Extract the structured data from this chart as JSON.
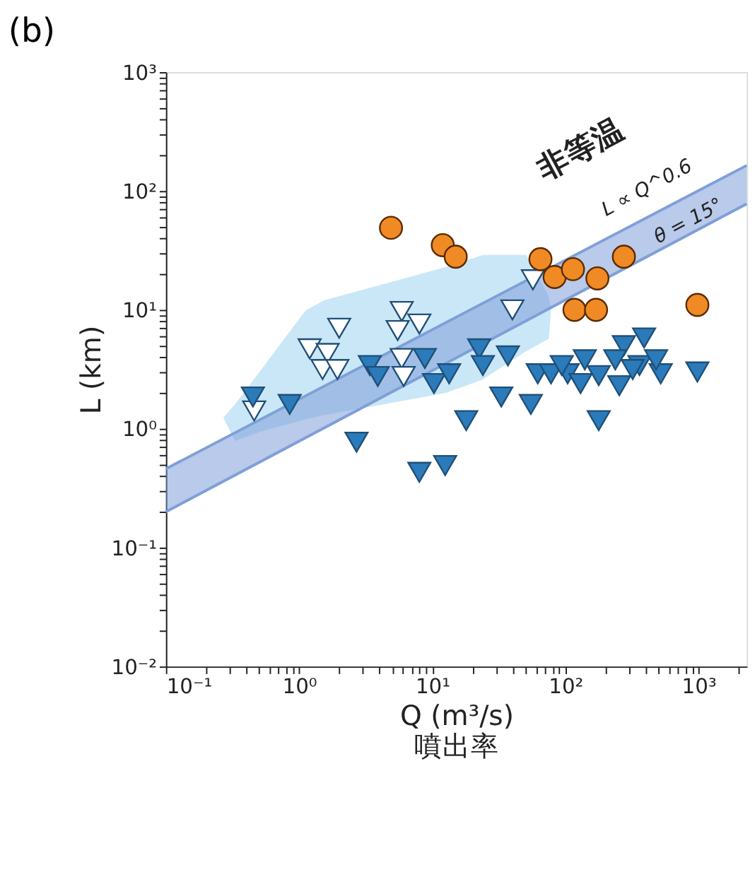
{
  "chart_data": {
    "type": "scatter",
    "title": "(b)",
    "xlabel": "Q (m³/s)\n噴出率",
    "ylabel": "L (km)",
    "log": "xy",
    "grid": false,
    "xlim": [
      0.1,
      2300
    ],
    "ylim": [
      0.01,
      1000
    ],
    "xticks": [
      {
        "value": 0.1,
        "label": "10⁻¹"
      },
      {
        "value": 0.2,
        "label": null
      },
      {
        "value": 0.3,
        "label": null
      },
      {
        "value": 0.4,
        "label": null
      },
      {
        "value": 0.5,
        "label": null
      },
      {
        "value": 0.6,
        "label": null
      },
      {
        "value": 0.7,
        "label": null
      },
      {
        "value": 0.8,
        "label": null
      },
      {
        "value": 0.9,
        "label": null
      },
      {
        "value": 1,
        "label": "10⁰"
      },
      {
        "value": 2,
        "label": null
      },
      {
        "value": 3,
        "label": null
      },
      {
        "value": 4,
        "label": null
      },
      {
        "value": 5,
        "label": null
      },
      {
        "value": 6,
        "label": null
      },
      {
        "value": 7,
        "label": null
      },
      {
        "value": 8,
        "label": null
      },
      {
        "value": 9,
        "label": null
      },
      {
        "value": 10,
        "label": "10¹"
      },
      {
        "value": 20,
        "label": null
      },
      {
        "value": 30,
        "label": null
      },
      {
        "value": 40,
        "label": null
      },
      {
        "value": 50,
        "label": null
      },
      {
        "value": 60,
        "label": null
      },
      {
        "value": 70,
        "label": null
      },
      {
        "value": 80,
        "label": null
      },
      {
        "value": 90,
        "label": null
      },
      {
        "value": 100,
        "label": "10²"
      },
      {
        "value": 200,
        "label": null
      },
      {
        "value": 300,
        "label": null
      },
      {
        "value": 400,
        "label": null
      },
      {
        "value": 500,
        "label": null
      },
      {
        "value": 600,
        "label": null
      },
      {
        "value": 700,
        "label": null
      },
      {
        "value": 800,
        "label": null
      },
      {
        "value": 900,
        "label": null
      },
      {
        "value": 1000,
        "label": "10³"
      },
      {
        "value": 2000,
        "label": null
      }
    ],
    "yticks": [
      {
        "value": 0.01,
        "label": "10⁻²"
      },
      {
        "value": 0.02,
        "label": null
      },
      {
        "value": 0.03,
        "label": null
      },
      {
        "value": 0.04,
        "label": null
      },
      {
        "value": 0.05,
        "label": null
      },
      {
        "value": 0.06,
        "label": null
      },
      {
        "value": 0.07,
        "label": null
      },
      {
        "value": 0.08,
        "label": null
      },
      {
        "value": 0.09,
        "label": null
      },
      {
        "value": 0.1,
        "label": "10⁻¹"
      },
      {
        "value": 0.2,
        "label": null
      },
      {
        "value": 0.3,
        "label": null
      },
      {
        "value": 0.4,
        "label": null
      },
      {
        "value": 0.5,
        "label": null
      },
      {
        "value": 0.6,
        "label": null
      },
      {
        "value": 0.7,
        "label": null
      },
      {
        "value": 0.8,
        "label": null
      },
      {
        "value": 0.9,
        "label": null
      },
      {
        "value": 1,
        "label": "10⁰"
      },
      {
        "value": 2,
        "label": null
      },
      {
        "value": 3,
        "label": null
      },
      {
        "value": 4,
        "label": null
      },
      {
        "value": 5,
        "label": null
      },
      {
        "value": 6,
        "label": null
      },
      {
        "value": 7,
        "label": null
      },
      {
        "value": 8,
        "label": null
      },
      {
        "value": 9,
        "label": null
      },
      {
        "value": 10,
        "label": "10¹"
      },
      {
        "value": 20,
        "label": null
      },
      {
        "value": 30,
        "label": null
      },
      {
        "value": 40,
        "label": null
      },
      {
        "value": 50,
        "label": null
      },
      {
        "value": 60,
        "label": null
      },
      {
        "value": 70,
        "label": null
      },
      {
        "value": 80,
        "label": null
      },
      {
        "value": 90,
        "label": null
      },
      {
        "value": 100,
        "label": "10²"
      },
      {
        "value": 200,
        "label": null
      },
      {
        "value": 300,
        "label": null
      },
      {
        "value": 400,
        "label": null
      },
      {
        "value": 500,
        "label": null
      },
      {
        "value": 600,
        "label": null
      },
      {
        "value": 700,
        "label": null
      },
      {
        "value": 800,
        "label": null
      },
      {
        "value": 900,
        "label": null
      },
      {
        "value": 1000,
        "label": "10³"
      }
    ],
    "series": [
      {
        "type": "line",
        "color": "#9fd3f0",
        "x": [
          0.27,
          0.33,
          0.52,
          1.12,
          1.53,
          12.7,
          24,
          51,
          75,
          78
        ],
        "values": [
          null,
          null,
          null,
          null,
          null,
          null,
          null,
          null,
          null,
          null
        ],
        "upper": [
          1.24,
          1.6,
          3.15,
          9.9,
          12,
          23,
          29,
          29,
          13,
          10
        ],
        "lower": [
          1.24,
          0.79,
          0.95,
          1.2,
          1.3,
          2.0,
          2.6,
          4.5,
          5.7,
          10
        ]
      },
      {
        "type": "line",
        "color": "#7f9fd8",
        "x": [
          0.1,
          2300
        ],
        "values": [
          0.46,
          164
        ],
        "upper": [
          0.46,
          164
        ],
        "lower": [
          0.2,
          78
        ]
      },
      {
        "marker": "triangle",
        "color": "#ffffff",
        "x": [
          0.46,
          2.0,
          1.2,
          1.64,
          1.5,
          1.94,
          5.9,
          8.0,
          5.5,
          5.9,
          6.1,
          57,
          40
        ],
        "values": [
          1.41,
          7.0,
          4.7,
          4.3,
          3.15,
          3.15,
          9.7,
          7.6,
          6.7,
          3.9,
          2.75,
          17.9,
          10
        ]
      },
      {
        "marker": "triangle",
        "color": "#2b7bba",
        "x": [
          0.45,
          0.85,
          2.7,
          3.4,
          3.9,
          8.0,
          12.5,
          8.8,
          10.3,
          13.4,
          22.5,
          24,
          37,
          33,
          55,
          18,
          62,
          78,
          104,
          140,
          130,
          178,
          178,
          254,
          275,
          390,
          360,
          520,
          980,
          237,
          480,
          320,
          94
        ],
        "values": [
          1.85,
          1.6,
          0.77,
          3.4,
          2.75,
          0.43,
          0.49,
          3.9,
          2.4,
          2.9,
          4.7,
          3.4,
          4.1,
          1.85,
          1.6,
          1.17,
          2.9,
          2.9,
          2.9,
          3.8,
          2.4,
          2.8,
          1.17,
          2.3,
          5.0,
          5.8,
          3.4,
          2.9,
          3.0,
          3.8,
          3.8,
          3.15,
          3.4
        ]
      },
      {
        "marker": "circle",
        "color": "#f08a24",
        "x": [
          4.9,
          12,
          15,
          65,
          83,
          114,
          174,
          275,
          117,
          170,
          980
        ],
        "values": [
          49,
          35,
          28,
          26.7,
          18.9,
          22,
          18.4,
          28,
          10,
          10,
          11
        ]
      }
    ],
    "annotations": [
      "非等温",
      "L ∝ Q^0.6",
      "θ = 15°"
    ]
  }
}
